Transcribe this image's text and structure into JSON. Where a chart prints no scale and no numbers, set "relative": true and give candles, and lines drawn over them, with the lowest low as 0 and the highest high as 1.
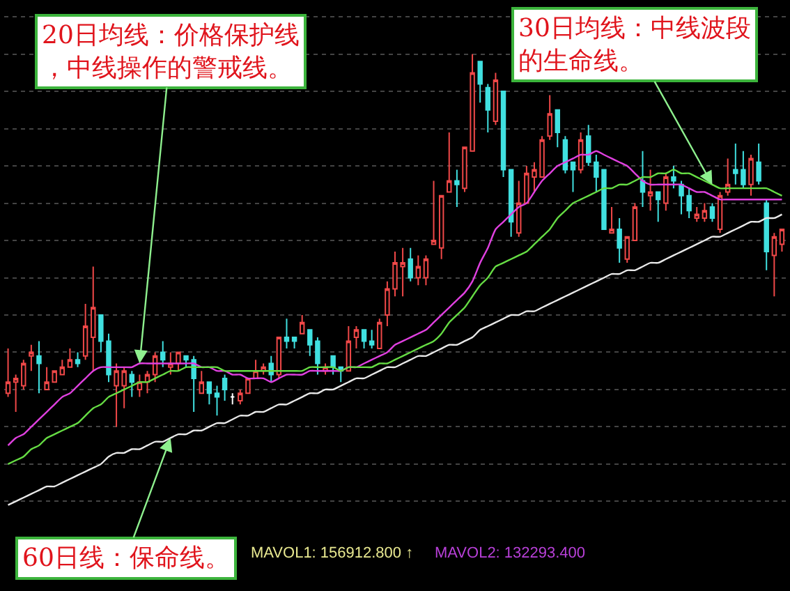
{
  "chart_data": {
    "type": "candlestick",
    "relative": true,
    "grid": "y",
    "categories": [
      null,
      null,
      null,
      null,
      null,
      null,
      null,
      null,
      null,
      null,
      null,
      null,
      null,
      null,
      null,
      null,
      null,
      null,
      null,
      null,
      null,
      null,
      null,
      null,
      null,
      null,
      null,
      null,
      null,
      null,
      null,
      null,
      null,
      null,
      null,
      null,
      null,
      null,
      null,
      null,
      null,
      null,
      null,
      null,
      null,
      null,
      null,
      null,
      null,
      null,
      null,
      null,
      null,
      null,
      null,
      null,
      null,
      null,
      null,
      null,
      null,
      null,
      null,
      null,
      null,
      null,
      null,
      null,
      null,
      null,
      null,
      null,
      null,
      null,
      null,
      null,
      null,
      null,
      null,
      null,
      null,
      null,
      null,
      null,
      null,
      null,
      null,
      null,
      null,
      null,
      null,
      null,
      null,
      null,
      null,
      null,
      null,
      null,
      null,
      null,
      null
    ],
    "ohlc": [
      [
        0.09,
        0.21,
        0.08,
        0.12
      ],
      [
        0.12,
        0.14,
        0.04,
        0.13
      ],
      [
        0.11,
        0.18,
        0.1,
        0.17
      ],
      [
        0.19,
        0.22,
        0.15,
        0.2
      ],
      [
        0.19,
        0.23,
        0.09,
        0.17
      ],
      [
        0.1,
        0.16,
        0.1,
        0.12
      ],
      [
        0.12,
        0.15,
        0.12,
        0.15
      ],
      [
        0.14,
        0.18,
        0.14,
        0.16
      ],
      [
        0.16,
        0.21,
        0.16,
        0.18
      ],
      [
        0.18,
        0.2,
        0.16,
        0.17
      ],
      [
        0.19,
        0.33,
        0.18,
        0.27
      ],
      [
        0.24,
        0.43,
        0.15,
        0.32
      ],
      [
        0.3,
        0.3,
        0.2,
        0.23
      ],
      [
        0.23,
        0.25,
        0.12,
        0.14
      ],
      [
        0.11,
        0.17,
        0.0,
        0.15
      ],
      [
        0.11,
        0.16,
        0.05,
        0.15
      ],
      [
        0.14,
        0.15,
        0.08,
        0.12
      ],
      [
        0.1,
        0.14,
        0.08,
        0.12
      ],
      [
        0.12,
        0.15,
        0.09,
        0.14
      ],
      [
        0.14,
        0.2,
        0.12,
        0.19
      ],
      [
        0.2,
        0.23,
        0.16,
        0.18
      ],
      [
        0.16,
        0.2,
        0.14,
        0.17
      ],
      [
        0.17,
        0.2,
        0.15,
        0.2
      ],
      [
        0.19,
        0.19,
        0.16,
        0.18
      ],
      [
        0.18,
        0.19,
        0.04,
        0.13
      ],
      [
        0.09,
        0.15,
        0.09,
        0.12
      ],
      [
        0.12,
        0.12,
        0.06,
        0.09
      ],
      [
        0.09,
        0.11,
        0.03,
        0.08
      ],
      [
        0.13,
        0.14,
        0.07,
        0.1
      ],
      [
        0.08,
        0.09,
        0.06,
        0.08
      ],
      [
        0.07,
        0.1,
        0.06,
        0.09
      ],
      [
        0.09,
        0.13,
        0.09,
        0.13
      ],
      [
        0.13,
        0.18,
        0.13,
        0.15
      ],
      [
        0.15,
        0.17,
        0.14,
        0.16
      ],
      [
        0.17,
        0.19,
        0.12,
        0.14
      ],
      [
        0.14,
        0.24,
        0.13,
        0.24
      ],
      [
        0.24,
        0.29,
        0.21,
        0.23
      ],
      [
        0.24,
        0.24,
        0.21,
        0.23
      ],
      [
        0.25,
        0.3,
        0.25,
        0.28
      ],
      [
        0.26,
        0.26,
        0.19,
        0.22
      ],
      [
        0.23,
        0.24,
        0.14,
        0.17
      ],
      [
        0.15,
        0.17,
        0.14,
        0.16
      ],
      [
        0.19,
        0.19,
        0.14,
        0.16
      ],
      [
        0.16,
        0.16,
        0.12,
        0.15
      ],
      [
        0.15,
        0.27,
        0.15,
        0.23
      ],
      [
        0.24,
        0.27,
        0.21,
        0.26
      ],
      [
        0.26,
        0.26,
        0.21,
        0.23
      ],
      [
        0.23,
        0.26,
        0.21,
        0.22
      ],
      [
        0.21,
        0.29,
        0.21,
        0.28
      ],
      [
        0.3,
        0.39,
        0.27,
        0.37
      ],
      [
        0.37,
        0.47,
        0.35,
        0.44
      ],
      [
        0.43,
        0.48,
        0.35,
        0.44
      ],
      [
        0.45,
        0.48,
        0.39,
        0.4
      ],
      [
        0.4,
        0.46,
        0.38,
        0.43
      ],
      [
        0.4,
        0.46,
        0.38,
        0.45
      ],
      [
        0.49,
        0.66,
        0.49,
        0.5
      ],
      [
        0.48,
        0.62,
        0.45,
        0.62
      ],
      [
        0.63,
        0.79,
        0.63,
        0.66
      ],
      [
        0.66,
        0.69,
        0.59,
        0.65
      ],
      [
        0.64,
        0.75,
        0.63,
        0.75
      ],
      [
        0.74,
        1.0,
        0.74,
        0.95
      ],
      [
        0.98,
        0.98,
        0.87,
        0.92
      ],
      [
        0.91,
        0.92,
        0.79,
        0.85
      ],
      [
        0.82,
        0.95,
        0.81,
        0.93
      ],
      [
        0.9,
        0.9,
        0.67,
        0.69
      ],
      [
        0.69,
        0.69,
        0.51,
        0.55
      ],
      [
        0.52,
        0.66,
        0.51,
        0.6
      ],
      [
        0.6,
        0.7,
        0.6,
        0.68
      ],
      [
        0.67,
        0.71,
        0.63,
        0.69
      ],
      [
        0.67,
        0.78,
        0.67,
        0.77
      ],
      [
        0.78,
        0.89,
        0.77,
        0.84
      ],
      [
        0.85,
        0.85,
        0.75,
        0.79
      ],
      [
        0.77,
        0.78,
        0.68,
        0.69
      ],
      [
        0.71,
        0.71,
        0.63,
        0.69
      ],
      [
        0.69,
        0.79,
        0.68,
        0.77
      ],
      [
        0.78,
        0.81,
        0.7,
        0.71
      ],
      [
        0.71,
        0.73,
        0.63,
        0.67
      ],
      [
        0.69,
        0.69,
        0.53,
        0.53
      ],
      [
        0.52,
        0.59,
        0.52,
        0.53
      ],
      [
        0.53,
        0.56,
        0.44,
        0.48
      ],
      [
        0.45,
        0.51,
        0.44,
        0.51
      ],
      [
        0.5,
        0.6,
        0.5,
        0.59
      ],
      [
        0.66,
        0.74,
        0.59,
        0.63
      ],
      [
        0.62,
        0.69,
        0.58,
        0.63
      ],
      [
        0.63,
        0.63,
        0.55,
        0.61
      ],
      [
        0.6,
        0.68,
        0.58,
        0.67
      ],
      [
        0.67,
        0.7,
        0.64,
        0.66
      ],
      [
        0.65,
        0.66,
        0.57,
        0.62
      ],
      [
        0.62,
        0.64,
        0.56,
        0.58
      ],
      [
        0.56,
        0.59,
        0.55,
        0.57
      ],
      [
        0.56,
        0.6,
        0.55,
        0.58
      ],
      [
        0.59,
        0.6,
        0.55,
        0.56
      ],
      [
        0.53,
        0.63,
        0.52,
        0.62
      ],
      [
        0.63,
        0.72,
        0.62,
        0.65
      ],
      [
        0.69,
        0.76,
        0.65,
        0.68
      ],
      [
        0.69,
        0.74,
        0.64,
        0.65
      ],
      [
        0.65,
        0.73,
        0.62,
        0.72
      ],
      [
        0.71,
        0.76,
        0.65,
        0.66
      ],
      [
        0.6,
        0.61,
        0.42,
        0.47
      ],
      [
        0.46,
        0.52,
        0.35,
        0.51
      ],
      [
        0.49,
        0.53,
        0.47,
        0.53
      ]
    ],
    "colors": [
      "#f04848",
      "#f04848",
      "#f04848",
      "#f04848",
      "#40e0e0",
      "#f04848",
      "#f04848",
      "#f04848",
      "#f04848",
      "#40e0e0",
      "#f04848",
      "#f04848",
      "#40e0e0",
      "#40e0e0",
      "#f04848",
      "#f04848",
      "#40e0e0",
      "#f04848",
      "#f04848",
      "#f04848",
      "#40e0e0",
      "#f04848",
      "#f04848",
      "#40e0e0",
      "#40e0e0",
      "#f04848",
      "#40e0e0",
      "#40e0e0",
      "#40e0e0",
      "#ffffff",
      "#f04848",
      "#f04848",
      "#f04848",
      "#f04848",
      "#40e0e0",
      "#f04848",
      "#40e0e0",
      "#40e0e0",
      "#f04848",
      "#40e0e0",
      "#40e0e0",
      "#f04848",
      "#40e0e0",
      "#40e0e0",
      "#f04848",
      "#f04848",
      "#40e0e0",
      "#40e0e0",
      "#f04848",
      "#f04848",
      "#f04848",
      "#f04848",
      "#40e0e0",
      "#f04848",
      "#f04848",
      "#f04848",
      "#f04848",
      "#f04848",
      "#40e0e0",
      "#f04848",
      "#f04848",
      "#40e0e0",
      "#40e0e0",
      "#f04848",
      "#40e0e0",
      "#40e0e0",
      "#f04848",
      "#f04848",
      "#f04848",
      "#f04848",
      "#f04848",
      "#40e0e0",
      "#40e0e0",
      "#40e0e0",
      "#f04848",
      "#40e0e0",
      "#40e0e0",
      "#40e0e0",
      "#f04848",
      "#40e0e0",
      "#f04848",
      "#f04848",
      "#40e0e0",
      "#f04848",
      "#40e0e0",
      "#f04848",
      "#40e0e0",
      "#40e0e0",
      "#40e0e0",
      "#f04848",
      "#f04848",
      "#40e0e0",
      "#f04848",
      "#f04848",
      "#40e0e0",
      "#40e0e0",
      "#f04848",
      "#40e0e0",
      "#40e0e0",
      "#f04848",
      "#f04848"
    ],
    "series": [
      {
        "type": "line",
        "color": "#e040e0",
        "values": [
          -0.05,
          -0.03,
          -0.02,
          0.0,
          0.02,
          0.04,
          0.06,
          0.08,
          0.09,
          0.11,
          0.13,
          0.15,
          0.16,
          0.16,
          0.16,
          0.16,
          0.16,
          0.17,
          0.17,
          0.17,
          0.17,
          0.17,
          0.17,
          0.17,
          0.17,
          0.16,
          0.16,
          0.15,
          0.15,
          0.14,
          0.14,
          0.13,
          0.13,
          0.13,
          0.12,
          0.13,
          0.14,
          0.14,
          0.14,
          0.15,
          0.15,
          0.15,
          0.15,
          0.15,
          0.16,
          0.16,
          0.17,
          0.18,
          0.19,
          0.2,
          0.22,
          0.23,
          0.24,
          0.25,
          0.26,
          0.28,
          0.3,
          0.32,
          0.34,
          0.36,
          0.39,
          0.44,
          0.48,
          0.53,
          0.55,
          0.57,
          0.59,
          0.6,
          0.63,
          0.66,
          0.68,
          0.7,
          0.71,
          0.72,
          0.73,
          0.73,
          0.74,
          0.73,
          0.72,
          0.71,
          0.7,
          0.68,
          0.66,
          0.65,
          0.65,
          0.65,
          0.65,
          0.65,
          0.64,
          0.63,
          0.63,
          0.62,
          0.61,
          0.61,
          0.61,
          0.61,
          0.61,
          0.61,
          0.61,
          0.61,
          0.61
        ]
      },
      {
        "type": "line",
        "color": "#66dd44",
        "values": [
          -0.1,
          -0.09,
          -0.08,
          -0.06,
          -0.05,
          -0.03,
          -0.02,
          -0.01,
          0.0,
          0.01,
          0.03,
          0.05,
          0.06,
          0.08,
          0.09,
          0.1,
          0.11,
          0.12,
          0.12,
          0.13,
          0.14,
          0.15,
          0.15,
          0.16,
          0.16,
          0.16,
          0.16,
          0.16,
          0.15,
          0.15,
          0.15,
          0.15,
          0.15,
          0.15,
          0.15,
          0.15,
          0.15,
          0.15,
          0.15,
          0.16,
          0.16,
          0.16,
          0.16,
          0.15,
          0.16,
          0.16,
          0.16,
          0.16,
          0.17,
          0.17,
          0.18,
          0.19,
          0.2,
          0.21,
          0.22,
          0.23,
          0.25,
          0.28,
          0.3,
          0.32,
          0.35,
          0.38,
          0.4,
          0.43,
          0.44,
          0.45,
          0.46,
          0.47,
          0.49,
          0.51,
          0.53,
          0.56,
          0.58,
          0.6,
          0.61,
          0.62,
          0.63,
          0.64,
          0.64,
          0.65,
          0.65,
          0.66,
          0.67,
          0.67,
          0.68,
          0.68,
          0.69,
          0.68,
          0.68,
          0.67,
          0.66,
          0.65,
          0.64,
          0.64,
          0.64,
          0.64,
          0.64,
          0.64,
          0.64,
          0.63,
          0.62
        ]
      },
      {
        "type": "line",
        "color": "#e8e8e8",
        "values": [
          -0.21,
          -0.2,
          -0.19,
          -0.18,
          -0.17,
          -0.16,
          -0.16,
          -0.15,
          -0.14,
          -0.13,
          -0.12,
          -0.11,
          -0.1,
          -0.08,
          -0.07,
          -0.07,
          -0.06,
          -0.06,
          -0.05,
          -0.04,
          -0.04,
          -0.03,
          -0.02,
          -0.02,
          -0.01,
          -0.01,
          0.0,
          0.01,
          0.01,
          0.02,
          0.03,
          0.03,
          0.04,
          0.04,
          0.05,
          0.06,
          0.06,
          0.07,
          0.08,
          0.09,
          0.09,
          0.1,
          0.1,
          0.11,
          0.12,
          0.13,
          0.13,
          0.14,
          0.15,
          0.16,
          0.16,
          0.17,
          0.18,
          0.19,
          0.19,
          0.2,
          0.21,
          0.22,
          0.22,
          0.23,
          0.24,
          0.26,
          0.27,
          0.28,
          0.29,
          0.3,
          0.3,
          0.31,
          0.31,
          0.32,
          0.33,
          0.34,
          0.35,
          0.36,
          0.37,
          0.38,
          0.39,
          0.4,
          0.41,
          0.41,
          0.42,
          0.42,
          0.43,
          0.44,
          0.44,
          0.45,
          0.46,
          0.47,
          0.48,
          0.49,
          0.5,
          0.51,
          0.51,
          0.52,
          0.53,
          0.54,
          0.55,
          0.55,
          0.56,
          0.56,
          0.57
        ]
      }
    ],
    "annotations": [
      "20日均线：价格保护线，中线操作的警戒线。",
      "30日均线：中线波段的生命线。",
      "60日线：保命线。",
      "MAVOL1: 156912.800 ↑",
      "MAVOL2: 132293.400"
    ]
  }
}
